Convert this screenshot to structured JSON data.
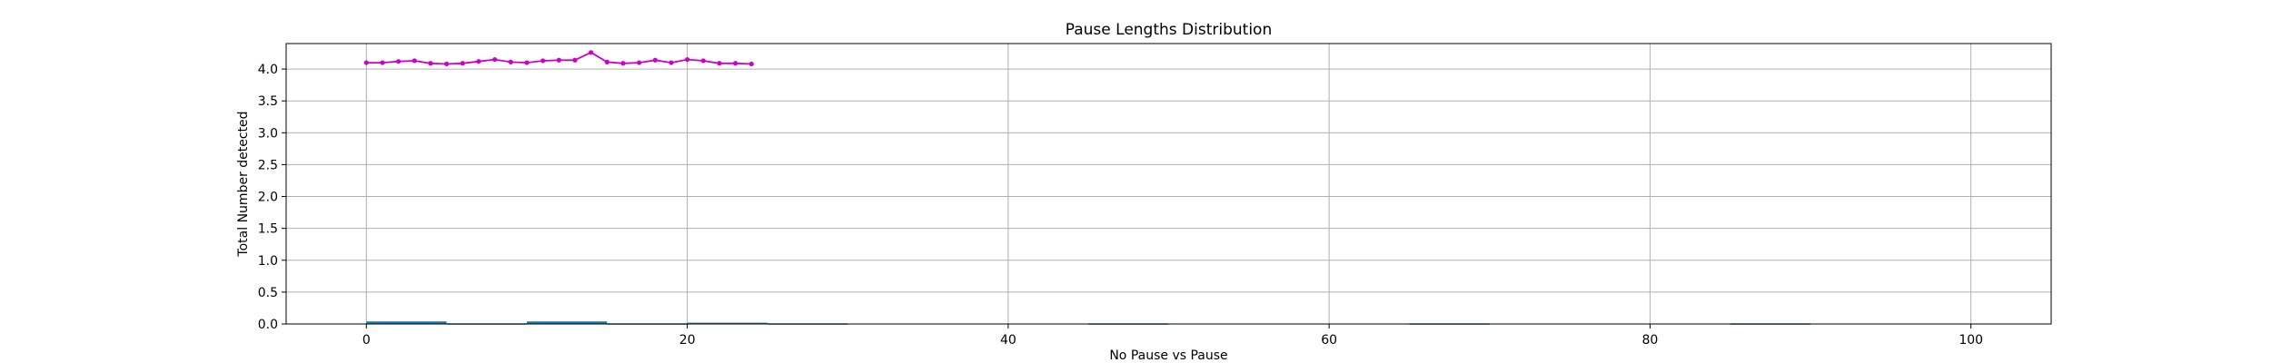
{
  "chart_data": {
    "type": "line",
    "title": "Pause Lengths Distribution",
    "xlabel": "No Pause vs Pause",
    "ylabel": "Total Number detected",
    "xlim": [
      -5,
      105
    ],
    "ylim": [
      0,
      4.4
    ],
    "xticks": [
      0,
      20,
      40,
      60,
      80,
      100
    ],
    "yticks": [
      0.0,
      0.5,
      1.0,
      1.5,
      2.0,
      2.5,
      3.0,
      3.5,
      4.0
    ],
    "grid": true,
    "colors": {
      "line": "#cc00cc",
      "bars": "#1f77b4"
    },
    "line_series": {
      "x": [
        0,
        1,
        2,
        3,
        4,
        5,
        6,
        7,
        8,
        9,
        10,
        11,
        12,
        13,
        14,
        15,
        16,
        17,
        18,
        19,
        20,
        21,
        22,
        23,
        24
      ],
      "values": [
        4.1,
        4.1,
        4.12,
        4.13,
        4.09,
        4.08,
        4.09,
        4.12,
        4.15,
        4.11,
        4.1,
        4.13,
        4.14,
        4.14,
        4.26,
        4.11,
        4.09,
        4.1,
        4.14,
        4.1,
        4.15,
        4.13,
        4.09,
        4.09,
        4.08
      ]
    },
    "bar_series": {
      "bins": [
        {
          "x0": 0,
          "x1": 5,
          "value": 0.04
        },
        {
          "x0": 5,
          "x1": 10,
          "value": 0.01
        },
        {
          "x0": 10,
          "x1": 15,
          "value": 0.04
        },
        {
          "x0": 15,
          "x1": 20,
          "value": 0.01
        },
        {
          "x0": 20,
          "x1": 25,
          "value": 0.02
        },
        {
          "x0": 25,
          "x1": 30,
          "value": 0.01
        },
        {
          "x0": 45,
          "x1": 50,
          "value": 0.01
        },
        {
          "x0": 65,
          "x1": 70,
          "value": 0.01
        },
        {
          "x0": 85,
          "x1": 90,
          "value": 0.01
        }
      ]
    }
  }
}
